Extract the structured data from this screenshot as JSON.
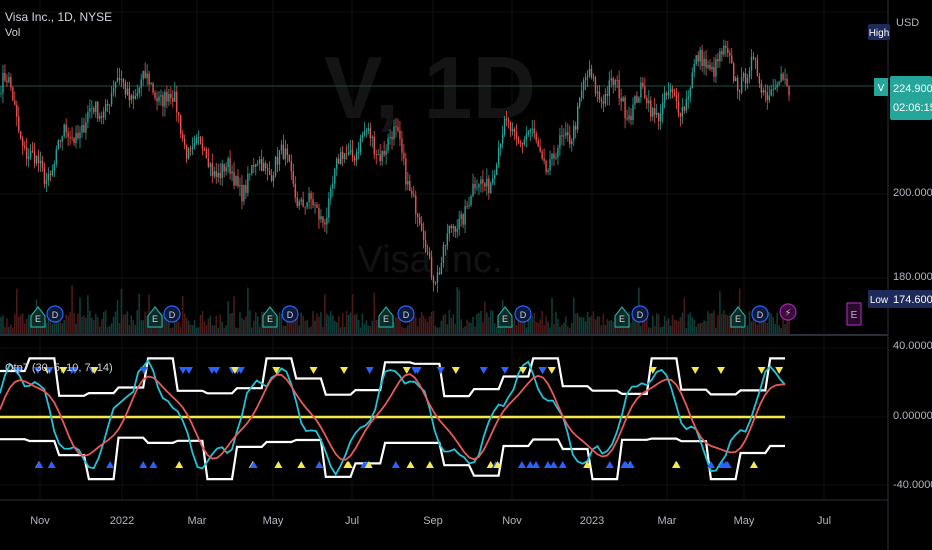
{
  "header": {
    "symbol_title": "Visa Inc., 1D, NYSE",
    "volume_label": "Vol"
  },
  "watermark": {
    "ticker": "V, 1D",
    "name": "Visa Inc."
  },
  "indicator": {
    "legend": "Otp7 (30, 5, 10, 7, 14)"
  },
  "price_axis": {
    "currency": "USD",
    "ticks": [
      "200.00000",
      "180.00000"
    ],
    "high_label": "High",
    "low_label": "Low",
    "low_value": "174.60000",
    "last_price": "224.90000",
    "countdown": "02:06:15",
    "symbol_badge": "V"
  },
  "osc_axis": {
    "ticks": [
      "40.00000",
      "0.00000",
      "-40.00000"
    ]
  },
  "time_axis": {
    "labels": [
      "Nov",
      "2022",
      "Mar",
      "May",
      "Jul",
      "Sep",
      "Nov",
      "2023",
      "Mar",
      "May",
      "Jul"
    ]
  },
  "events": {
    "earnings": "E",
    "dividend": "D"
  },
  "colors": {
    "up": "#26a69a",
    "down": "#ef5350",
    "cyan": "#22c3d6",
    "red": "#e85a5a",
    "yellow": "#f5e84a",
    "blue": "#2962ff",
    "white": "#ffffff",
    "badge_green": "#26a69a",
    "badge_navy": "#1e2a5a",
    "purple": "#9c27b0"
  },
  "chart_data": {
    "type": "line",
    "price_series_approx": [
      {
        "month": "2021-10",
        "close": 226
      },
      {
        "month": "2021-11",
        "close": 205
      },
      {
        "month": "2021-12",
        "close": 216
      },
      {
        "month": "2022-01",
        "close": 225
      },
      {
        "month": "2022-02",
        "close": 225
      },
      {
        "month": "2022-03",
        "close": 210
      },
      {
        "month": "2022-04",
        "close": 203
      },
      {
        "month": "2022-05",
        "close": 208
      },
      {
        "month": "2022-06",
        "close": 195
      },
      {
        "month": "2022-07",
        "close": 212
      },
      {
        "month": "2022-08",
        "close": 212
      },
      {
        "month": "2022-09",
        "close": 183
      },
      {
        "month": "2022-10",
        "close": 200
      },
      {
        "month": "2022-11",
        "close": 215
      },
      {
        "month": "2022-12",
        "close": 208
      },
      {
        "month": "2023-01",
        "close": 226
      },
      {
        "month": "2023-02",
        "close": 222
      },
      {
        "month": "2023-03",
        "close": 221
      },
      {
        "month": "2023-04",
        "close": 232
      },
      {
        "month": "2023-05",
        "close": 228
      },
      {
        "month": "2023-06",
        "close": 224.9
      }
    ],
    "oscillator_range": [
      -40,
      40
    ]
  }
}
